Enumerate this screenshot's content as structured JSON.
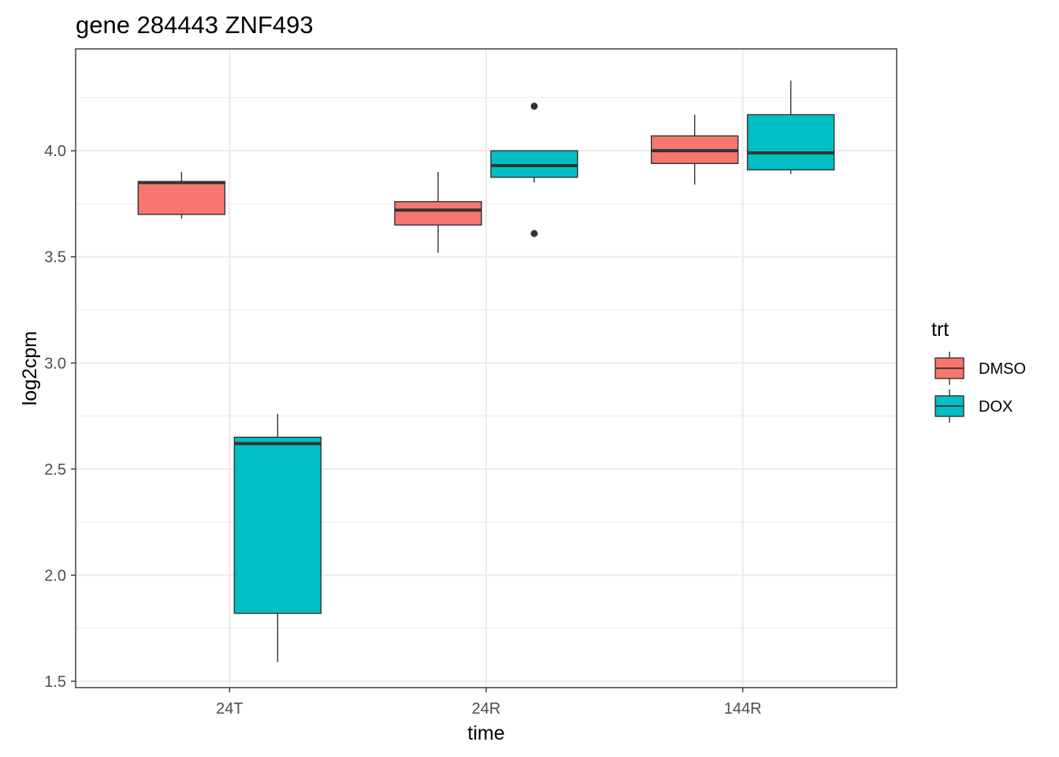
{
  "chart_data": {
    "type": "box",
    "title": "gene 284443 ZNF493",
    "xlabel": "time",
    "ylabel": "log2cpm",
    "categories": [
      "24T",
      "24R",
      "144R"
    ],
    "ylim": [
      1.47,
      4.48
    ],
    "yticks": [
      1.5,
      2.0,
      2.5,
      3.0,
      3.5,
      4.0
    ],
    "ytick_labels": [
      "1.5",
      "2.0",
      "2.5",
      "3.0",
      "3.5",
      "4.0"
    ],
    "grid": true,
    "legend": {
      "title": "trt",
      "position": "right",
      "entries": [
        {
          "label": "DMSO",
          "color": "#F8766D"
        },
        {
          "label": "DOX",
          "color": "#00BFC4"
        }
      ]
    },
    "series": [
      {
        "name": "DMSO",
        "color": "#F8766D",
        "boxes": [
          {
            "category": "24T",
            "whisker_low": 3.68,
            "q1": 3.7,
            "median": 3.85,
            "q3": 3.855,
            "whisker_high": 3.9,
            "outliers": []
          },
          {
            "category": "24R",
            "whisker_low": 3.52,
            "q1": 3.65,
            "median": 3.72,
            "q3": 3.76,
            "whisker_high": 3.9,
            "outliers": []
          },
          {
            "category": "144R",
            "whisker_low": 3.84,
            "q1": 3.94,
            "median": 4.0,
            "q3": 4.07,
            "whisker_high": 4.17,
            "outliers": []
          }
        ]
      },
      {
        "name": "DOX",
        "color": "#00BFC4",
        "boxes": [
          {
            "category": "24T",
            "whisker_low": 1.59,
            "q1": 1.82,
            "median": 2.62,
            "q3": 2.65,
            "whisker_high": 2.76,
            "outliers": []
          },
          {
            "category": "24R",
            "whisker_low": 3.85,
            "q1": 3.875,
            "median": 3.93,
            "q3": 4.0,
            "whisker_high": 4.0,
            "outliers": [
              4.21,
              3.61
            ]
          },
          {
            "category": "144R",
            "whisker_low": 3.89,
            "q1": 3.91,
            "median": 3.99,
            "q3": 4.17,
            "whisker_high": 4.33,
            "outliers": []
          }
        ]
      }
    ]
  }
}
